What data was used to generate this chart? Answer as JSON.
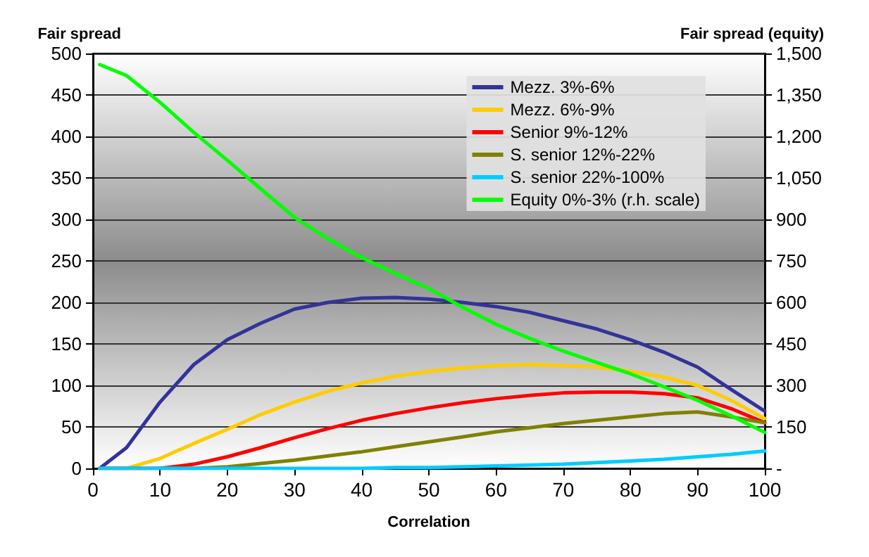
{
  "chart_data": {
    "type": "line",
    "xlabel": "Correlation",
    "ylabel": "Fair spread",
    "y2label": "Fair spread (equity)",
    "x": [
      1,
      5,
      10,
      15,
      20,
      25,
      30,
      35,
      40,
      45,
      50,
      55,
      60,
      65,
      70,
      75,
      80,
      85,
      90,
      95,
      100
    ],
    "xlim": [
      0,
      100
    ],
    "xticks": [
      0,
      10,
      20,
      30,
      40,
      50,
      60,
      70,
      80,
      90,
      100
    ],
    "ylim": [
      0,
      500
    ],
    "yticks": [
      0,
      50,
      100,
      150,
      200,
      250,
      300,
      350,
      400,
      450,
      500
    ],
    "y2lim": [
      0,
      1500
    ],
    "y2ticks": [
      {
        "value": 0,
        "label": "-"
      },
      150,
      300,
      450,
      600,
      750,
      900,
      {
        "value": 1050,
        "label": "1,050"
      },
      {
        "value": 1200,
        "label": "1,200"
      },
      {
        "value": 1350,
        "label": "1,350"
      },
      {
        "value": 1500,
        "label": "1,500"
      }
    ],
    "grid": "y",
    "legend": "top right",
    "marker": "none",
    "line_style": "solid",
    "series": [
      {
        "name": "Mezz. 3%-6%",
        "color": "#333399",
        "values": [
          0,
          25,
          80,
          125,
          155,
          175,
          192,
          200,
          205,
          206,
          204,
          200,
          195,
          188,
          178,
          168,
          155,
          140,
          122,
          95,
          69
        ]
      },
      {
        "name": "Mezz. 6%-9%",
        "color": "#ffcc00",
        "values": [
          0,
          0,
          12,
          30,
          47,
          65,
          80,
          93,
          103,
          111,
          117,
          121,
          124,
          125,
          124,
          122,
          117,
          110,
          100,
          82,
          60
        ]
      },
      {
        "name": "Senior 9%-12%",
        "color": "#ff0000",
        "values": [
          0,
          0,
          0,
          5,
          14,
          25,
          37,
          48,
          58,
          66,
          73,
          79,
          84,
          88,
          91,
          92,
          92,
          90,
          85,
          72,
          55
        ]
      },
      {
        "name": "S. senior 12%-22%",
        "color": "#808000",
        "values": [
          null,
          null,
          0,
          0,
          2,
          6,
          10,
          15,
          20,
          26,
          32,
          38,
          44,
          49,
          54,
          58,
          62,
          66,
          68,
          62,
          55
        ]
      },
      {
        "name": "S. senior 22%-100%",
        "color": "#00ccff",
        "values": [
          0,
          0,
          0,
          0,
          0,
          0,
          0,
          0,
          0,
          1,
          1,
          2,
          3,
          4,
          5,
          7,
          9,
          11,
          14,
          17,
          21
        ]
      },
      {
        "name": "Equity 0%-3% (r.h. scale)",
        "color": "#00ff00",
        "axis": "y2",
        "values": [
          1460,
          1420,
          1323,
          1215,
          1114,
          1010,
          907,
          830,
          762,
          705,
          650,
          583,
          521,
          470,
          424,
          383,
          342,
          295,
          246,
          190,
          130
        ]
      }
    ]
  }
}
